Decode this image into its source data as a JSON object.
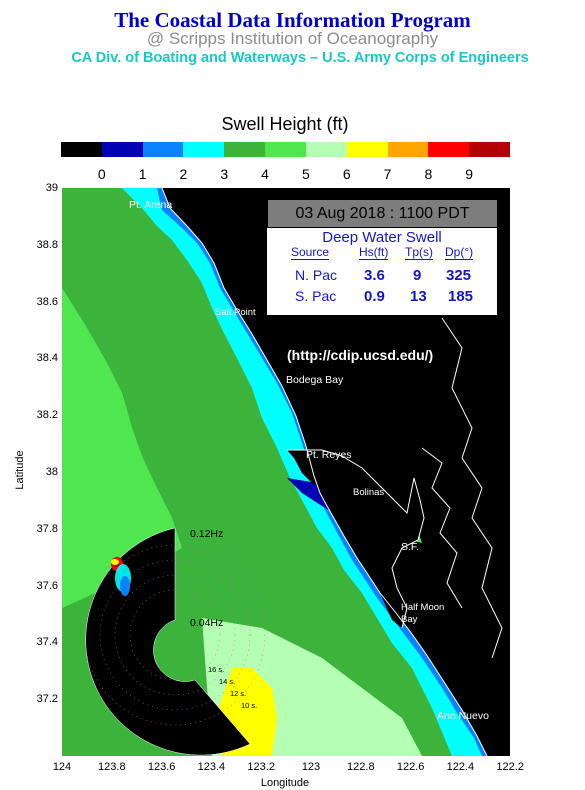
{
  "header": {
    "title": "The Coastal Data Information Program",
    "subtitle": "@ Scripps Institution of Oceanography",
    "agencies": "CA Div. of Boating and Waterways – U.S. Army Corps of Engineers"
  },
  "legend": {
    "title": "Swell Height (ft)",
    "colors": [
      "#000000",
      "#0000b4",
      "#0a82ff",
      "#00ffff",
      "#3cb43c",
      "#50e650",
      "#b4ffb4",
      "#ffff00",
      "#ffa500",
      "#ff0000",
      "#b40000"
    ],
    "ticks": [
      "0",
      "1",
      "2",
      "3",
      "4",
      "5",
      "6",
      "7",
      "8",
      "9"
    ]
  },
  "timestamp": "03 Aug 2018 : 1100 PDT",
  "url_text": "(http://cdip.ucsd.edu/)",
  "swell_table": {
    "heading": "Deep Water Swell",
    "columns": [
      "Source",
      "Hs(ft)",
      "Tp(s)",
      "Dp(°)"
    ],
    "rows": [
      {
        "source": "N. Pac",
        "hs": "3.6",
        "tp": "9",
        "dp": "325"
      },
      {
        "source": "S. Pac",
        "hs": "0.9",
        "tp": "13",
        "dp": "185"
      }
    ]
  },
  "map": {
    "lat_ticks": [
      "39",
      "38.8",
      "38.6",
      "38.4",
      "38.2",
      "38",
      "37.8",
      "37.6",
      "37.4",
      "37.2"
    ],
    "lon_ticks": [
      "124",
      "123.8",
      "123.6",
      "123.4",
      "123.2",
      "123",
      "122.8",
      "122.6",
      "122.4",
      "122.2"
    ],
    "xlabel": "Longitude",
    "ylabel": "Latitude",
    "places": [
      "Pt. Arena",
      "Salt Point",
      "Bodega Bay",
      "Pt. Reyes",
      "Bolinas",
      "S.F.",
      "Half Moon Bay",
      "Ano Nuevo"
    ]
  },
  "spectrum": {
    "freq_labels": [
      "0.12Hz",
      "0.04Hz"
    ],
    "period_labels": [
      "16 s.",
      "14 s.",
      "12 s.",
      "10 s."
    ]
  }
}
